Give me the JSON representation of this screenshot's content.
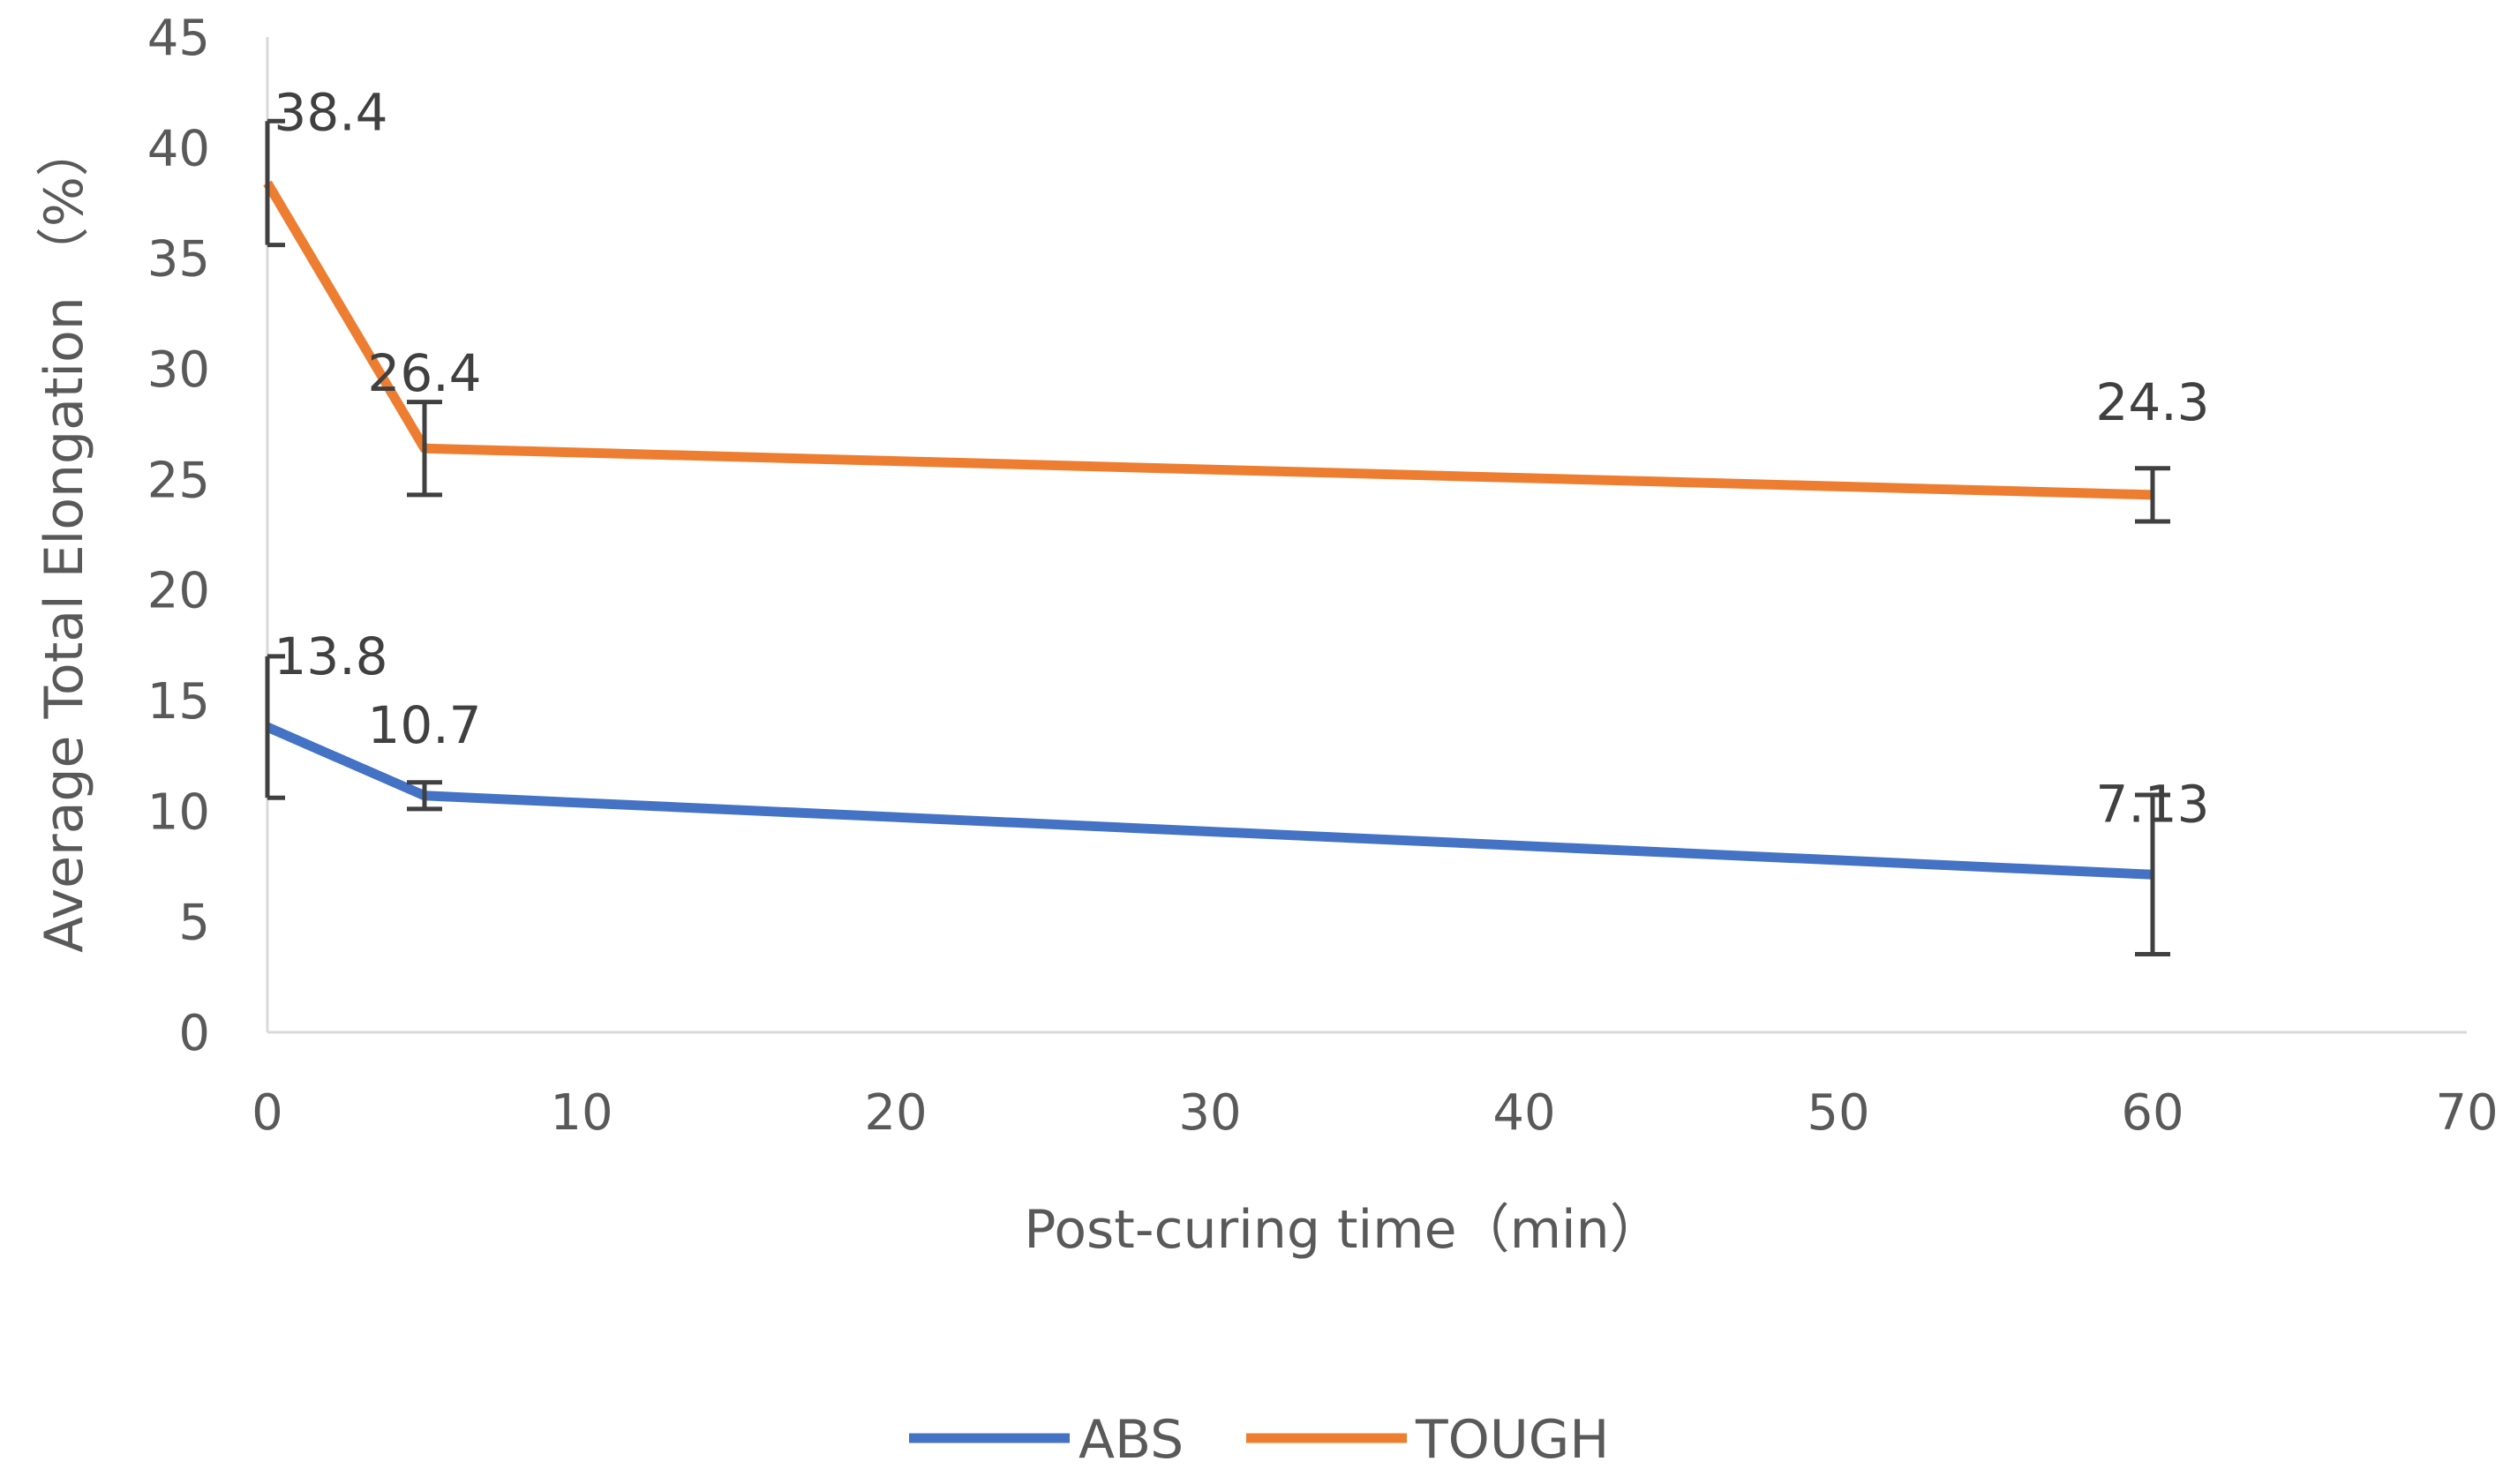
{
  "chart_data": {
    "type": "line",
    "title": "",
    "xlabel": "Post-curing time（min）",
    "ylabel": "Average Total Elongation （%）",
    "xlim": [
      0,
      70
    ],
    "ylim": [
      0,
      45
    ],
    "xticks": [
      0,
      10,
      20,
      30,
      40,
      50,
      60,
      70
    ],
    "yticks": [
      0,
      5,
      10,
      15,
      20,
      25,
      30,
      35,
      40,
      45
    ],
    "x_tick_labels": [
      "0",
      "10",
      "20",
      "30",
      "40",
      "50",
      "60",
      "70"
    ],
    "y_tick_labels": [
      "0",
      "5",
      "10",
      "15",
      "20",
      "25",
      "30",
      "35",
      "40",
      "45"
    ],
    "grid": false,
    "legend": "bottom",
    "x": [
      0,
      5,
      60
    ],
    "series": [
      {
        "name": "ABS",
        "color": "#4472C4",
        "values": [
          13.8,
          10.7,
          7.13
        ],
        "labels": [
          "13.8",
          "10.7",
          "7.13"
        ],
        "error": [
          3.2,
          0.6,
          3.6
        ]
      },
      {
        "name": "TOUGH",
        "color": "#ED7D31",
        "values": [
          38.4,
          26.4,
          24.3
        ],
        "labels": [
          "38.4",
          "26.4",
          "24.3"
        ],
        "error": [
          2.8,
          2.1,
          1.2
        ]
      }
    ]
  }
}
